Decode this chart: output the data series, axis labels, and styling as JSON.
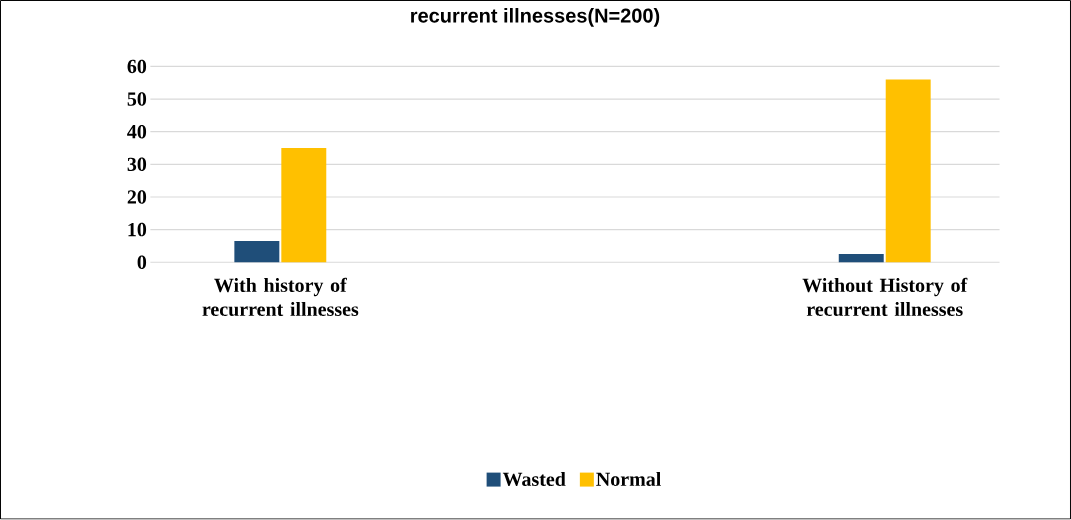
{
  "chart_data": {
    "type": "bar",
    "title": "recurrent illnesses(N=200)",
    "categories": [
      "With history of recurrent illnesses",
      "Without History of recurrent illnesses"
    ],
    "series": [
      {
        "name": "Wasted",
        "color": "#1f4e79",
        "values": [
          6.5,
          2.5
        ]
      },
      {
        "name": "Normal",
        "color": "#ffc000",
        "values": [
          35,
          56
        ]
      }
    ],
    "ylim": [
      0,
      60
    ],
    "yticks": [
      0,
      10,
      20,
      30,
      40,
      50,
      60
    ],
    "grid": "y",
    "legend": "bottom"
  }
}
